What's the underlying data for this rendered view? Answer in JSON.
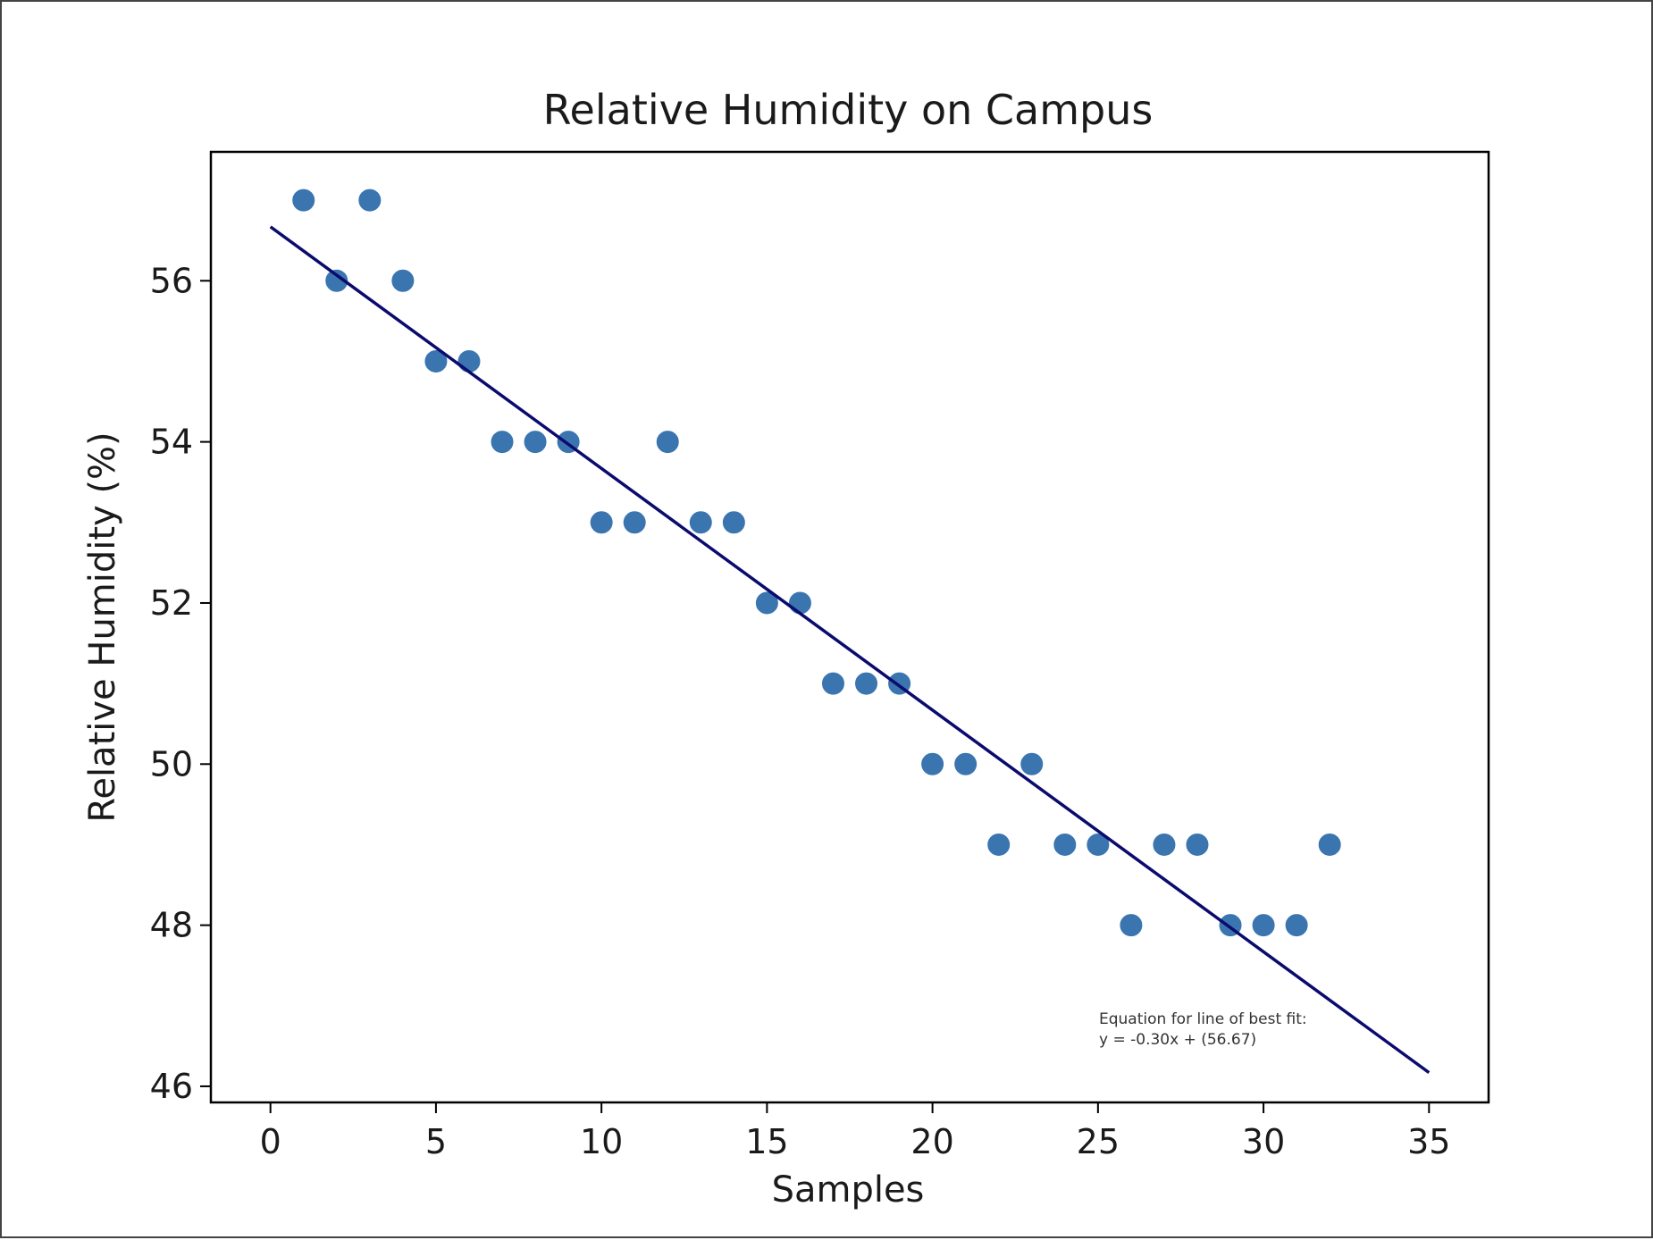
{
  "chart_data": {
    "type": "scatter",
    "title": "Relative Humidity on Campus",
    "xlabel": "Samples",
    "ylabel": "Relative Humidity (%)",
    "xlim": [
      -1.8,
      36.8
    ],
    "ylim": [
      45.8,
      57.6
    ],
    "xticks": [
      0,
      5,
      10,
      15,
      20,
      25,
      30,
      35
    ],
    "yticks": [
      46,
      48,
      50,
      52,
      54,
      56
    ],
    "grid": false,
    "points": {
      "x": [
        1,
        2,
        3,
        4,
        5,
        6,
        7,
        8,
        9,
        10,
        11,
        12,
        13,
        14,
        15,
        16,
        17,
        18,
        19,
        20,
        21,
        22,
        23,
        24,
        25,
        26,
        27,
        28,
        29,
        30,
        31,
        32
      ],
      "y": [
        57,
        56,
        57,
        56,
        55,
        55,
        54,
        54,
        54,
        53,
        53,
        54,
        53,
        53,
        52,
        52,
        51,
        51,
        51,
        50,
        50,
        49,
        50,
        49,
        49,
        48,
        49,
        49,
        48,
        48,
        48,
        49
      ],
      "color": "#3a75b0"
    },
    "fit_line": {
      "slope": -0.3,
      "intercept": 56.67,
      "x_range": [
        0,
        35
      ],
      "color": "#0b0b6e"
    },
    "annotation": {
      "line1": "Equation for line of best fit:",
      "line2": "y = -0.30x + (56.67)"
    }
  }
}
